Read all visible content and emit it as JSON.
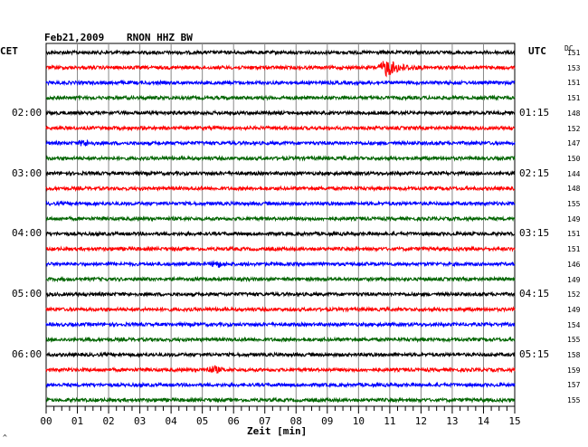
{
  "header": {
    "date": "Feb21,2009",
    "station": "RNON HHZ BW",
    "left_tz": "CET",
    "right_tz": "UTC",
    "dc_label": "DC"
  },
  "chart_data": {
    "type": "line",
    "title": "",
    "xlabel": "Zeit [min]",
    "ylabel": "",
    "xlim": [
      0,
      15
    ],
    "x_ticks": [
      "00",
      "01",
      "02",
      "03",
      "04",
      "05",
      "06",
      "07",
      "08",
      "09",
      "10",
      "11",
      "12",
      "13",
      "14",
      "15"
    ],
    "minor_ticks_per_minute": 4,
    "grid": true,
    "trace_colors": [
      "#000000",
      "#ff0000",
      "#0000ff",
      "#006400"
    ],
    "rows_per_hour": 4,
    "left_time_labels": [
      {
        "row": 4,
        "label": "02:00"
      },
      {
        "row": 8,
        "label": "03:00"
      },
      {
        "row": 12,
        "label": "04:00"
      },
      {
        "row": 16,
        "label": "05:00"
      },
      {
        "row": 20,
        "label": "06:00"
      }
    ],
    "right_time_labels": [
      {
        "row": 4,
        "label": "01:15"
      },
      {
        "row": 8,
        "label": "02:15"
      },
      {
        "row": 12,
        "label": "03:15"
      },
      {
        "row": 16,
        "label": "04:15"
      },
      {
        "row": 20,
        "label": "05:15"
      }
    ],
    "dc_values": [
      151,
      153,
      151,
      151,
      148,
      152,
      147,
      150,
      144,
      148,
      155,
      149,
      151,
      151,
      146,
      149,
      152,
      149,
      154,
      155,
      158,
      159,
      157,
      155
    ],
    "events": [
      {
        "row": 1,
        "start_min": 10.6,
        "end_min": 12.2,
        "peak_min": 10.9,
        "amplitude": "large"
      },
      {
        "row": 6,
        "start_min": 1.0,
        "end_min": 1.8,
        "peak_min": 1.2,
        "amplitude": "small"
      },
      {
        "row": 14,
        "start_min": 5.2,
        "end_min": 5.8,
        "peak_min": 5.5,
        "amplitude": "small"
      },
      {
        "row": 21,
        "start_min": 5.0,
        "end_min": 6.0,
        "peak_min": 5.4,
        "amplitude": "small"
      }
    ],
    "footer_mark": "^"
  }
}
